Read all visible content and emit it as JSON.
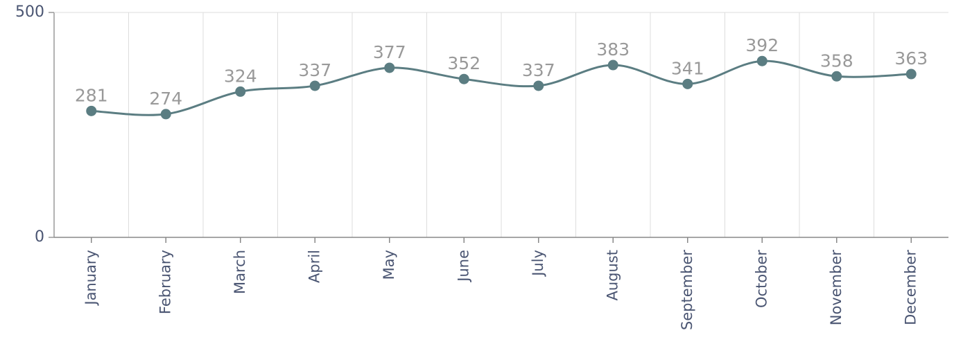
{
  "chart_data": {
    "type": "line",
    "categories": [
      "January",
      "February",
      "March",
      "April",
      "May",
      "June",
      "July",
      "August",
      "September",
      "October",
      "November",
      "December"
    ],
    "values": [
      281,
      274,
      324,
      337,
      377,
      352,
      337,
      383,
      341,
      392,
      358,
      363
    ],
    "color": "#5b7d82",
    "ylim": [
      0,
      500
    ],
    "yticks": [
      0,
      500
    ],
    "grid": true,
    "smooth": true
  }
}
